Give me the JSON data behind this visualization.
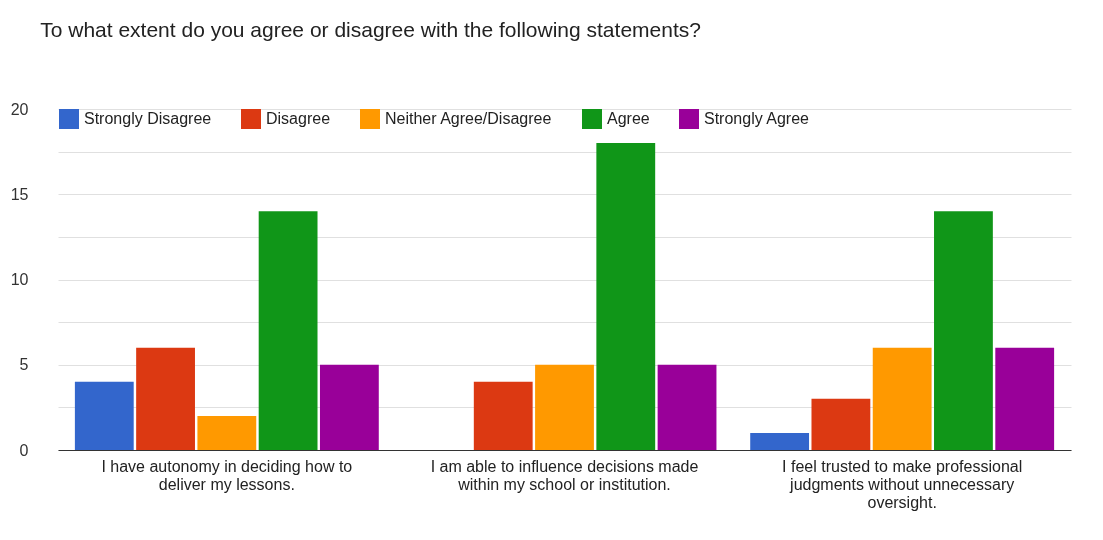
{
  "chart_data": {
    "type": "bar",
    "title": "To what extent do you agree or disagree with the following statements?",
    "categories": [
      "I have autonomy in deciding how to deliver my lessons.",
      "I am able to influence decisions made within my school or institution.",
      "I feel trusted to make professional judgments without unnecessary oversight."
    ],
    "series": [
      {
        "name": "Strongly Disagree",
        "color": "#3366cc",
        "values": [
          4,
          0,
          1
        ]
      },
      {
        "name": "Disagree",
        "color": "#dc3912",
        "values": [
          6,
          4,
          3
        ]
      },
      {
        "name": "Neither Agree/Disagree",
        "color": "#ff9900",
        "values": [
          2,
          5,
          6
        ]
      },
      {
        "name": "Agree",
        "color": "#109618",
        "values": [
          14,
          18,
          14
        ]
      },
      {
        "name": "Strongly Agree",
        "color": "#990099",
        "values": [
          5,
          5,
          6
        ]
      }
    ],
    "ylim": [
      0,
      20
    ],
    "yticks": [
      0,
      {
        "value": 2.5,
        "label": null
      },
      5,
      {
        "value": 7.5,
        "label": null
      },
      10,
      {
        "value": 12.5,
        "label": null
      },
      15,
      {
        "value": 17.5,
        "label": null
      },
      20
    ],
    "grid": true,
    "legend": "top"
  }
}
